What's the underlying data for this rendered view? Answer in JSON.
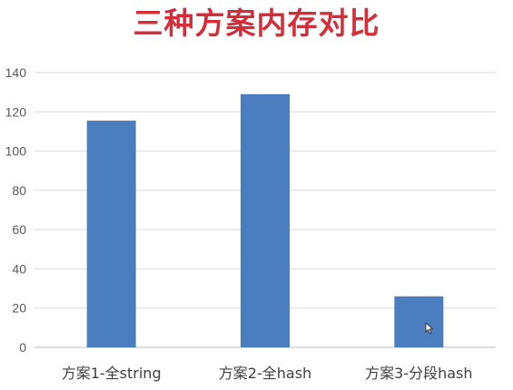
{
  "chart_data": {
    "type": "bar",
    "title": "三种方案内存对比",
    "categories": [
      "方案1-全string",
      "方案2-全hash",
      "方案3-分段hash"
    ],
    "values": [
      115.5,
      129,
      26
    ],
    "ylim": [
      0,
      140
    ],
    "yticks": [
      0,
      20,
      40,
      60,
      80,
      100,
      120,
      140
    ],
    "grid": true,
    "legend": "none",
    "xlabel": "",
    "ylabel": "",
    "bar_color": "#4a7ebf"
  },
  "cursor": {
    "icon": "mouse-pointer-icon"
  }
}
